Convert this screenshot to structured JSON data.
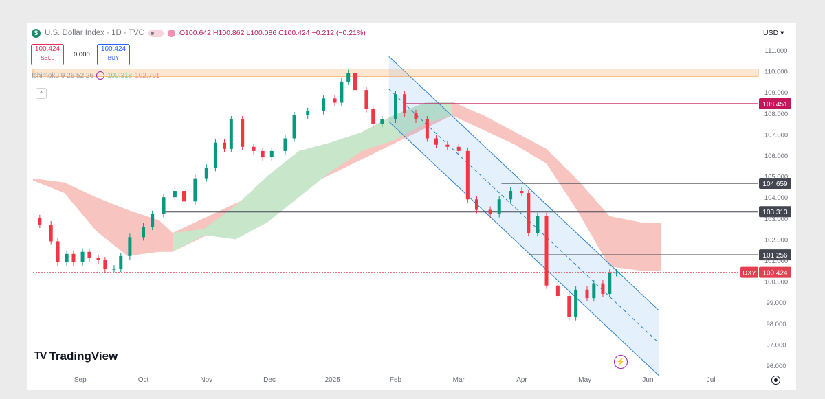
{
  "header": {
    "symbol": "U.S. Dollar Index · 1D · TVC",
    "open": "O100.642",
    "high": "H100.862",
    "low": "L100.086",
    "close": "C100.424",
    "change": "−0.212 (−0.21%)"
  },
  "trade": {
    "sell_price": "100.424",
    "sell_label": "SELL",
    "spread": "0.000",
    "buy_price": "100.424",
    "buy_label": "BUY"
  },
  "indicator": {
    "name": "Ichimoku 9 26 52 26",
    "value1": "100.318",
    "value2": "102.791"
  },
  "currency": "USD",
  "watermark": "TradingView",
  "colors": {
    "up": "#089981",
    "down": "#f23645",
    "cloud_bull": "#c8e6c9",
    "cloud_bear": "#f8c4c0",
    "channel": "#2a7fd4",
    "resistance_zone": "#f7a95a",
    "level_pink": "#c2185b",
    "level_dark": "#434651",
    "price_line": "#e04050"
  },
  "chart_data": {
    "type": "candlestick",
    "title": "U.S. Dollar Index · 1D · TVC",
    "x_ticks": [
      "Sep",
      "Oct",
      "Nov",
      "Dec",
      "2025",
      "Feb",
      "Mar",
      "Apr",
      "May",
      "Jun",
      "Jul"
    ],
    "y_ticks": [
      "111.000",
      "110.000",
      "109.000",
      "108.000",
      "107.000",
      "106.000",
      "105.000",
      "104.000",
      "103.000",
      "102.000",
      "101.000",
      "100.000",
      "99.000",
      "98.000",
      "97.000",
      "96.000"
    ],
    "ylim": [
      95.5,
      111.2
    ],
    "price_path": [
      [
        "2024-08-26",
        103.0
      ],
      [
        "2024-08-29",
        102.7
      ],
      [
        "2024-09-03",
        101.9
      ],
      [
        "2024-09-06",
        100.9
      ],
      [
        "2024-09-10",
        101.3
      ],
      [
        "2024-09-13",
        100.9
      ],
      [
        "2024-09-17",
        101.4
      ],
      [
        "2024-09-20",
        101.1
      ],
      [
        "2024-09-24",
        101.0
      ],
      [
        "2024-09-27",
        100.6
      ],
      [
        "2024-10-01",
        100.6
      ],
      [
        "2024-10-04",
        101.2
      ],
      [
        "2024-10-08",
        102.1
      ],
      [
        "2024-10-14",
        102.6
      ],
      [
        "2024-10-18",
        103.2
      ],
      [
        "2024-10-23",
        104.0
      ],
      [
        "2024-10-28",
        104.3
      ],
      [
        "2024-11-01",
        103.8
      ],
      [
        "2024-11-06",
        104.9
      ],
      [
        "2024-11-11",
        105.4
      ],
      [
        "2024-11-15",
        106.6
      ],
      [
        "2024-11-19",
        106.3
      ],
      [
        "2024-11-22",
        107.7
      ],
      [
        "2024-11-27",
        106.4
      ],
      [
        "2024-12-02",
        106.2
      ],
      [
        "2024-12-06",
        105.9
      ],
      [
        "2024-12-10",
        106.2
      ],
      [
        "2024-12-16",
        106.8
      ],
      [
        "2024-12-20",
        107.9
      ],
      [
        "2024-12-26",
        108.1
      ],
      [
        "2025-01-02",
        108.7
      ],
      [
        "2025-01-07",
        108.5
      ],
      [
        "2025-01-10",
        109.5
      ],
      [
        "2025-01-13",
        109.9
      ],
      [
        "2025-01-16",
        109.1
      ],
      [
        "2025-01-21",
        108.2
      ],
      [
        "2025-01-24",
        107.5
      ],
      [
        "2025-01-28",
        107.7
      ],
      [
        "2025-02-03",
        108.9
      ],
      [
        "2025-02-07",
        108.0
      ],
      [
        "2025-02-12",
        107.7
      ],
      [
        "2025-02-17",
        106.8
      ],
      [
        "2025-02-21",
        106.5
      ],
      [
        "2025-02-26",
        106.4
      ],
      [
        "2025-03-03",
        106.2
      ],
      [
        "2025-03-07",
        103.9
      ],
      [
        "2025-03-11",
        103.4
      ],
      [
        "2025-03-17",
        103.2
      ],
      [
        "2025-03-21",
        103.9
      ],
      [
        "2025-03-26",
        104.3
      ],
      [
        "2025-03-31",
        104.2
      ],
      [
        "2025-04-03",
        102.3
      ],
      [
        "2025-04-07",
        103.1
      ],
      [
        "2025-04-11",
        99.8
      ],
      [
        "2025-04-16",
        99.3
      ],
      [
        "2025-04-21",
        98.3
      ],
      [
        "2025-04-24",
        99.6
      ],
      [
        "2025-04-29",
        99.2
      ],
      [
        "2025-05-02",
        99.9
      ],
      [
        "2025-05-06",
        99.4
      ],
      [
        "2025-05-09",
        100.4
      ],
      [
        "2025-05-12",
        100.42
      ]
    ],
    "horizontal_levels": [
      {
        "value": 108.451,
        "label": "108.451"
      },
      {
        "value": 104.659,
        "label": "104.659"
      },
      {
        "value": 103.313,
        "label": "103.313"
      },
      {
        "value": 101.256,
        "label": "101.256"
      }
    ],
    "resistance_zone": [
      109.75,
      110.1
    ],
    "last_price": {
      "value": 100.424,
      "symbol": "DXY",
      "label": "100.424"
    },
    "channel": {
      "upper": [
        [
          "2025-01-31",
          110.7
        ],
        [
          "2025-05-31",
          98.6
        ]
      ],
      "lower": [
        [
          "2025-01-31",
          107.6
        ],
        [
          "2025-05-31",
          95.5
        ]
      ],
      "mid": [
        [
          "2025-01-31",
          109.15
        ],
        [
          "2025-05-31",
          97.05
        ]
      ]
    },
    "cloud_bull": [
      [
        "2024-10-27",
        102.3,
        101.4
      ],
      [
        "2024-11-10",
        102.5,
        102.2
      ],
      [
        "2024-11-24",
        103.6,
        102.0
      ],
      [
        "2024-12-08",
        105.0,
        102.8
      ],
      [
        "2024-12-22",
        106.2,
        104.0
      ],
      [
        "2025-01-05",
        106.6,
        105.2
      ],
      [
        "2025-01-19",
        107.1,
        106.2
      ],
      [
        "2025-02-02",
        107.9,
        106.7
      ],
      [
        "2025-02-16",
        108.5,
        107.5
      ],
      [
        "2025-02-28",
        108.55,
        107.9
      ]
    ],
    "cloud_bear": [
      [
        "2024-08-26",
        104.9,
        104.8
      ],
      [
        "2024-09-09",
        104.7,
        104.2
      ],
      [
        "2024-09-23",
        104.0,
        102.4
      ],
      [
        "2024-10-07",
        103.4,
        101.2
      ],
      [
        "2024-10-21",
        102.9,
        101.4
      ],
      [
        "2024-10-27",
        102.3,
        101.4
      ],
      [
        "2025-02-28",
        108.55,
        107.9
      ],
      [
        "2025-03-14",
        107.9,
        107.2
      ],
      [
        "2025-03-28",
        107.1,
        106.5
      ],
      [
        "2025-04-11",
        106.3,
        105.6
      ],
      [
        "2025-04-25",
        104.8,
        103.3
      ],
      [
        "2025-05-09",
        103.1,
        100.7
      ],
      [
        "2025-05-23",
        102.8,
        100.5
      ],
      [
        "2025-06-01",
        102.8,
        100.5
      ]
    ]
  }
}
